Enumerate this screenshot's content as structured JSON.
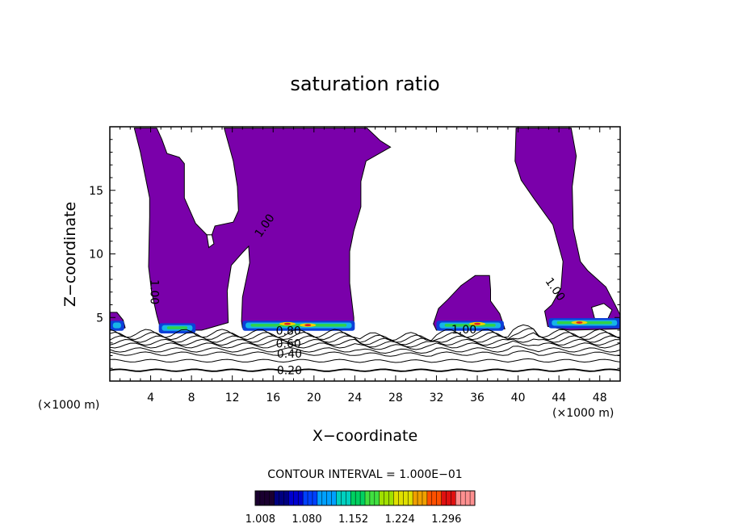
{
  "chart_data": {
    "type": "contour",
    "title": "saturation ratio",
    "xlabel": "X−coordinate",
    "ylabel": "Z−coordinate",
    "x_unit": "(×1000 m)",
    "xlim": [
      0,
      50
    ],
    "ylim": [
      0,
      20
    ],
    "x_ticks": [
      "4",
      "8",
      "12",
      "16",
      "20",
      "24",
      "28",
      "32",
      "36",
      "40",
      "44",
      "48"
    ],
    "y_ticks": [
      "5",
      "10",
      "15"
    ],
    "contour_labels": [
      {
        "text": "1.00",
        "x": 15.2,
        "z": 12.2,
        "angle": -55
      },
      {
        "text": "1.00",
        "x": 4.3,
        "z": 7.0,
        "angle": 90
      },
      {
        "text": "1.00",
        "x": 43.6,
        "z": 7.2,
        "angle": 55
      },
      {
        "text": "1.00",
        "x": 34.7,
        "z": 4.0,
        "angle": 0
      },
      {
        "text": "0.80",
        "x": 17.5,
        "z": 3.9,
        "angle": 0
      },
      {
        "text": "0.60",
        "x": 17.5,
        "z": 2.9,
        "angle": 0
      },
      {
        "text": "0.40",
        "x": 17.6,
        "z": 2.1,
        "angle": 0
      },
      {
        "text": "0.20",
        "x": 17.6,
        "z": 0.8,
        "angle": 0
      }
    ],
    "contour_interval_label": "CONTOUR INTERVAL = 1.000E−01",
    "colorbar": {
      "ticks": [
        "1.008",
        "1.080",
        "1.152",
        "1.224",
        "1.296"
      ],
      "min": 1.0,
      "max": 1.34
    },
    "colors": {
      "fill": "#7a00aa",
      "outline": "#000000"
    }
  }
}
